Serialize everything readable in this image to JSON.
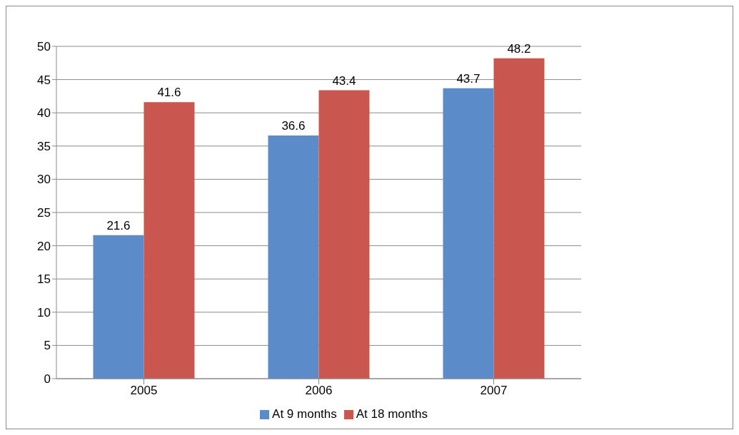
{
  "chart_data": {
    "type": "bar",
    "categories": [
      "2005",
      "2006",
      "2007"
    ],
    "series": [
      {
        "name": "At 9 months",
        "color": "#5b8bc9",
        "values": [
          21.6,
          36.6,
          43.7
        ]
      },
      {
        "name": "At 18 months",
        "color": "#c9574f",
        "values": [
          41.6,
          43.4,
          48.2
        ]
      }
    ],
    "ylim": [
      0,
      50
    ],
    "yticks": [
      0,
      5,
      10,
      15,
      20,
      25,
      30,
      35,
      40,
      45,
      50
    ],
    "grid": "y",
    "legend": "bottom",
    "data_labels": true
  }
}
